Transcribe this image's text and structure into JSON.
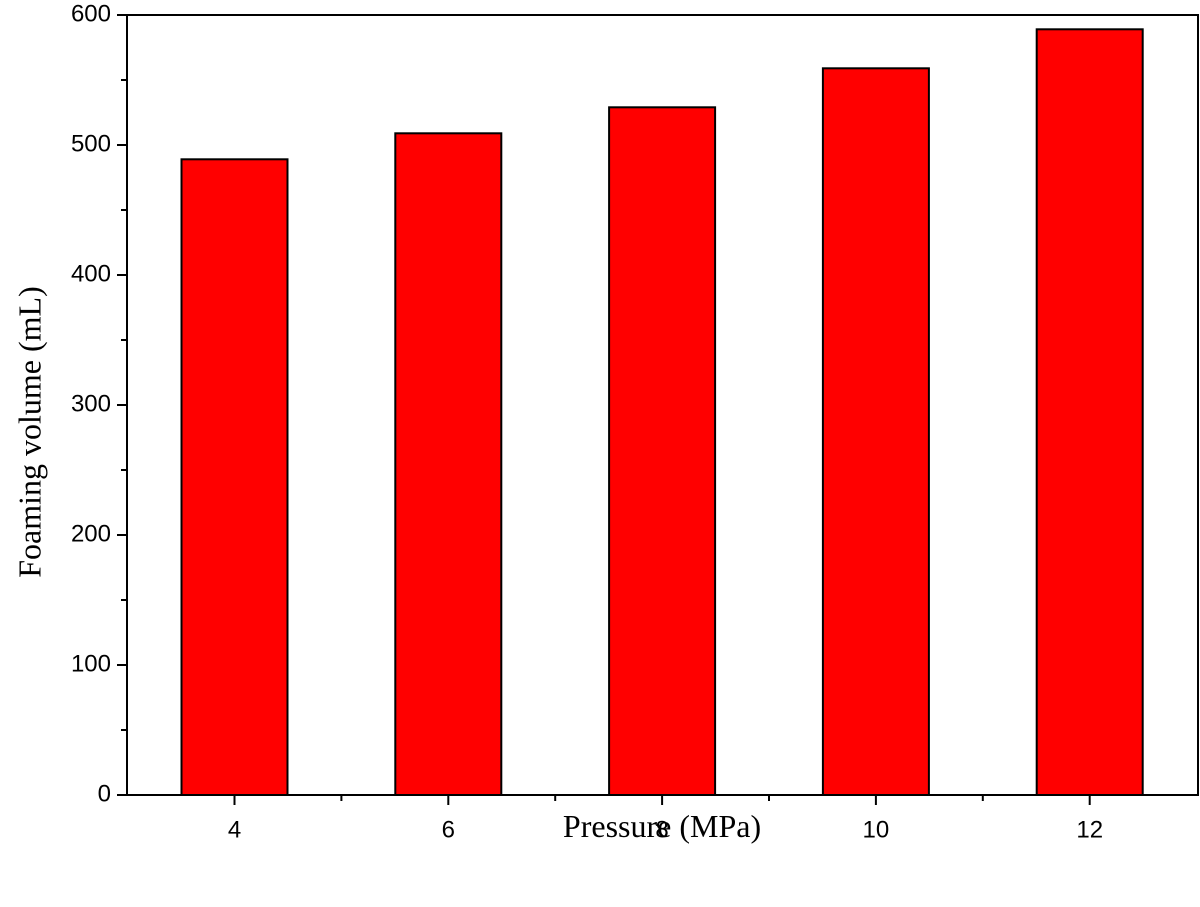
{
  "chart_data": {
    "type": "bar",
    "categories": [
      "4",
      "6",
      "8",
      "10",
      "12"
    ],
    "values": [
      489,
      509,
      529,
      559,
      589
    ],
    "xlabel": "Pressure (MPa)",
    "ylabel": "Foaming volume (mL)",
    "ylim": [
      0,
      600
    ],
    "yticks": [
      "0",
      "100",
      "200",
      "300",
      "400",
      "500",
      "600"
    ],
    "bar_color": "#ff0000",
    "grid": false,
    "legend": "none"
  }
}
